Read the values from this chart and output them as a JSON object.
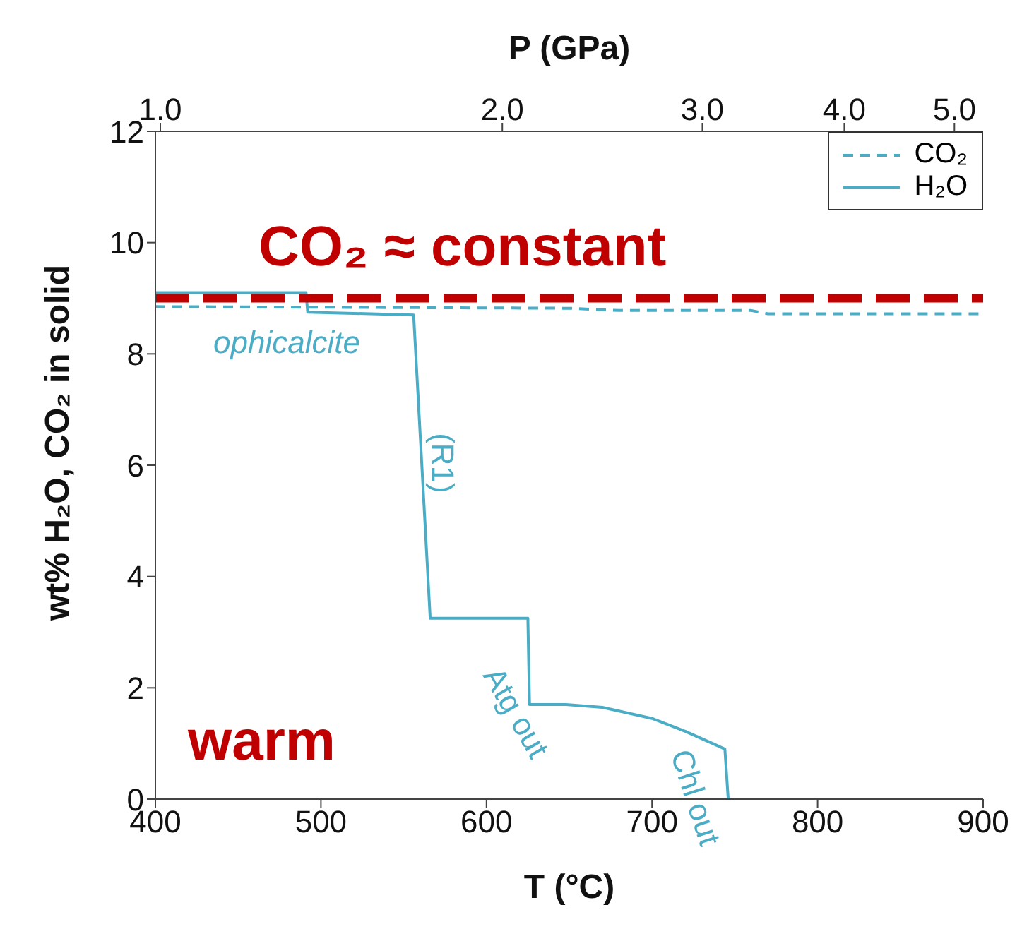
{
  "chart_data": {
    "type": "line",
    "xlabel": "T (°C)",
    "ylabel": "wt% H₂O, CO₂ in solid",
    "x2label": "P (GPa)",
    "xlim": [
      400,
      900
    ],
    "xticks": [
      400,
      500,
      600,
      700,
      800,
      900
    ],
    "x2lim": [
      0.99,
      5.3
    ],
    "x2ticks": [
      {
        "value": 1,
        "label": "1.0"
      },
      {
        "value": 2,
        "label": "2.0"
      },
      {
        "value": 3,
        "label": "3.0"
      },
      {
        "value": 4,
        "label": "4.0"
      },
      {
        "value": 5,
        "label": "5.0"
      }
    ],
    "log": "x2",
    "ylim": [
      0,
      12
    ],
    "yticks": [
      0,
      2,
      4,
      6,
      8,
      10,
      12
    ],
    "grid": false,
    "legend": "top right",
    "marker": "none",
    "series": [
      {
        "name": "CO₂",
        "color": "#4bacc6",
        "line_style": "dashed",
        "x": [
          400,
          650,
          680,
          760,
          770,
          900
        ],
        "values": [
          8.85,
          8.82,
          8.78,
          8.78,
          8.72,
          8.72
        ]
      },
      {
        "name": "H₂O",
        "color": "#4bacc6",
        "line_style": "solid",
        "x": [
          400,
          491,
          492,
          556,
          566,
          625,
          626,
          648,
          670,
          700,
          720,
          744,
          746
        ],
        "values": [
          9.1,
          9.1,
          8.75,
          8.7,
          3.25,
          3.25,
          1.7,
          1.7,
          1.65,
          1.45,
          1.22,
          0.9,
          0
        ]
      }
    ],
    "ref_lines": [
      {
        "axis": "y",
        "value": 9,
        "color": "#c00000",
        "line_style": "dashed"
      }
    ],
    "annotations": [
      "CO₂ ≈ constant",
      "warm",
      "ophicalcite",
      "(R1)",
      "Atg out",
      "Chl out"
    ]
  }
}
